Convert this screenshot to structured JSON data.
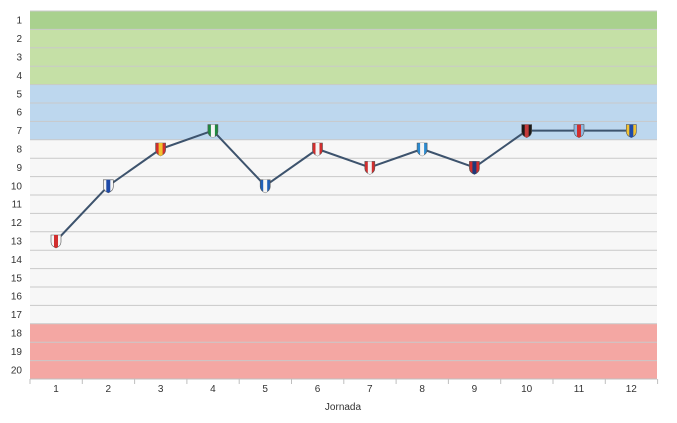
{
  "chart_data": {
    "type": "line",
    "title": "",
    "xlabel": "Jornada",
    "ylabel": "",
    "x": [
      1,
      2,
      3,
      4,
      5,
      6,
      7,
      8,
      9,
      10,
      11,
      12
    ],
    "xlim": [
      1,
      12
    ],
    "ylim": [
      1,
      20
    ],
    "y_inverted": true,
    "yticks": [
      1,
      2,
      3,
      4,
      5,
      6,
      7,
      8,
      9,
      10,
      11,
      12,
      13,
      14,
      15,
      16,
      17,
      18,
      19,
      20
    ],
    "grid": true,
    "legend": "none",
    "series": [
      {
        "values": [
          13,
          10,
          8,
          7,
          10,
          8,
          9,
          8,
          9,
          7,
          7,
          7
        ],
        "color": "#3d536d"
      }
    ],
    "markers": [
      "crest-icon",
      "crest-icon",
      "crest-icon",
      "crest-icon",
      "crest-icon",
      "crest-icon",
      "crest-icon",
      "crest-icon",
      "crest-icon",
      "crest-icon",
      "crest-icon",
      "crest-icon"
    ],
    "bands": [
      {
        "from": 1,
        "to": 1,
        "color": "#a9d18e"
      },
      {
        "from": 2,
        "to": 4,
        "color": "#c5e0a6"
      },
      {
        "from": 5,
        "to": 7,
        "color": "#bdd7ee"
      },
      {
        "from": 8,
        "to": 17,
        "color": "#f7f7f7"
      },
      {
        "from": 18,
        "to": 20,
        "color": "#f4a7a3"
      }
    ]
  }
}
